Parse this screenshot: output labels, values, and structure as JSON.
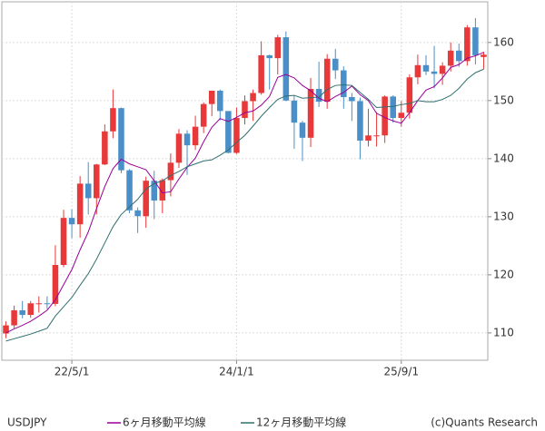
{
  "chart_data": {
    "type": "candlestick",
    "categories": [
      null,
      null,
      null,
      null,
      null,
      null,
      null,
      null,
      "22/5/1",
      null,
      null,
      null,
      null,
      null,
      null,
      null,
      null,
      null,
      null,
      null,
      null,
      null,
      null,
      null,
      null,
      null,
      null,
      null,
      "24/1/1",
      null,
      null,
      null,
      null,
      null,
      null,
      null,
      null,
      null,
      null,
      null,
      null,
      null,
      null,
      null,
      null,
      null,
      null,
      null,
      "25/9/1",
      null,
      null,
      null,
      null,
      null,
      null,
      null,
      null,
      null,
      null
    ],
    "candles": {
      "name": "USDJPY",
      "up_color": "#e8393a",
      "down_color": "#4a8fc7",
      "open": [
        109.9,
        111.3,
        113.9,
        113.1,
        115.1,
        115.1,
        115.0,
        121.7,
        129.8,
        128.7,
        135.7,
        133.2,
        139.0,
        144.7,
        148.7,
        138.0,
        131.1,
        130.1,
        136.2,
        132.8,
        136.3,
        139.3,
        144.3,
        142.3,
        145.5,
        149.4,
        151.7,
        148.2,
        141.0,
        147.0,
        149.9,
        151.3,
        157.8,
        157.3,
        160.9,
        150.0,
        146.2,
        143.6,
        152.0,
        149.8,
        157.2,
        155.2,
        150.6,
        149.9,
        143.1,
        144.0,
        144.0,
        150.7,
        147.0,
        147.9,
        154.0,
        156.1,
        155.0,
        154.6,
        156.0,
        158.6,
        156.8,
        162.6,
        157.5
      ],
      "high": [
        112.0,
        114.7,
        115.5,
        115.5,
        116.3,
        116.3,
        125.1,
        131.2,
        131.3,
        137.0,
        139.4,
        139.1,
        145.9,
        151.9,
        148.8,
        138.2,
        131.6,
        136.9,
        137.9,
        136.6,
        140.9,
        145.1,
        144.9,
        147.4,
        149.7,
        151.7,
        151.9,
        148.0,
        148.8,
        150.9,
        151.9,
        160.2,
        157.9,
        161.3,
        161.9,
        150.9,
        146.5,
        153.9,
        156.7,
        158.0,
        158.9,
        155.9,
        151.3,
        150.5,
        148.6,
        148.0,
        150.9,
        150.9,
        149.9,
        154.5,
        157.9,
        157.8,
        159.4,
        156.6,
        160.0,
        159.8,
        163.0,
        164.2,
        158.4
      ],
      "low": [
        109.1,
        110.8,
        112.5,
        112.6,
        113.5,
        114.1,
        114.6,
        121.3,
        126.3,
        126.4,
        130.4,
        130.4,
        138.9,
        143.5,
        137.5,
        130.6,
        127.2,
        128.1,
        129.6,
        130.6,
        133.5,
        138.4,
        137.2,
        141.5,
        144.4,
        147.3,
        146.6,
        140.9,
        140.8,
        145.9,
        146.5,
        151.0,
        151.9,
        154.5,
        149.9,
        141.7,
        139.6,
        142.0,
        148.9,
        148.6,
        153.7,
        148.6,
        146.5,
        139.9,
        142.1,
        142.1,
        142.7,
        146.2,
        145.5,
        146.9,
        152.8,
        154.4,
        152.1,
        152.7,
        155.0,
        155.8,
        156.0,
        156.2,
        155.4
      ],
      "close": [
        111.3,
        113.9,
        113.1,
        115.1,
        115.1,
        115.0,
        121.7,
        129.8,
        128.7,
        135.7,
        133.2,
        139.0,
        144.7,
        148.7,
        138.0,
        131.1,
        130.1,
        136.2,
        132.8,
        136.3,
        139.3,
        144.3,
        142.3,
        145.5,
        149.4,
        151.7,
        148.2,
        141.0,
        147.0,
        149.9,
        151.3,
        157.8,
        157.3,
        160.9,
        150.0,
        146.2,
        143.6,
        152.0,
        149.8,
        157.2,
        155.2,
        150.6,
        149.9,
        143.1,
        144.0,
        144.0,
        150.7,
        147.0,
        147.9,
        154.0,
        156.1,
        155.0,
        154.6,
        156.0,
        158.6,
        156.8,
        162.6,
        157.8,
        157.9
      ]
    },
    "series": [
      {
        "name": "6ヶ月移動平均線",
        "color": "#990099",
        "values": [
          110.0,
          110.7,
          111.3,
          112.0,
          112.9,
          113.9,
          115.7,
          118.3,
          120.9,
          124.3,
          127.4,
          131.4,
          135.2,
          138.3,
          139.9,
          139.1,
          138.6,
          138.1,
          136.2,
          134.1,
          134.3,
          136.5,
          138.5,
          140.1,
          142.9,
          145.4,
          146.9,
          146.4,
          147.1,
          147.9,
          148.2,
          149.2,
          150.7,
          154.0,
          154.5,
          153.9,
          152.6,
          151.7,
          150.4,
          149.8,
          150.7,
          151.4,
          152.5,
          151.0,
          150.0,
          147.8,
          147.1,
          146.5,
          146.1,
          147.9,
          150.0,
          151.8,
          152.4,
          153.9,
          155.7,
          156.2,
          157.3,
          157.7,
          158.3
        ]
      },
      {
        "name": "12ヶ月移動平均線",
        "color": "#2f6f6f",
        "values": [
          108.6,
          109.0,
          109.4,
          109.8,
          110.3,
          110.8,
          112.9,
          114.5,
          116.1,
          118.2,
          120.2,
          122.7,
          125.5,
          128.3,
          130.4,
          131.7,
          133.0,
          134.8,
          135.7,
          136.2,
          137.1,
          137.8,
          138.6,
          139.1,
          139.6,
          139.8,
          140.6,
          141.5,
          142.8,
          144.0,
          145.6,
          147.3,
          148.8,
          150.2,
          150.8,
          150.9,
          150.4,
          150.5,
          150.6,
          151.9,
          152.6,
          152.7,
          152.6,
          151.4,
          150.2,
          148.8,
          148.9,
          149.0,
          149.3,
          149.5,
          150.0,
          149.8,
          149.8,
          150.2,
          150.9,
          152.1,
          153.7,
          154.8,
          155.4
        ]
      }
    ],
    "ylim": [
      105.3,
      167
    ],
    "yticks": [
      110,
      120,
      130,
      140,
      150,
      160
    ],
    "grid": true,
    "copyright": "(c)Quants Research"
  }
}
